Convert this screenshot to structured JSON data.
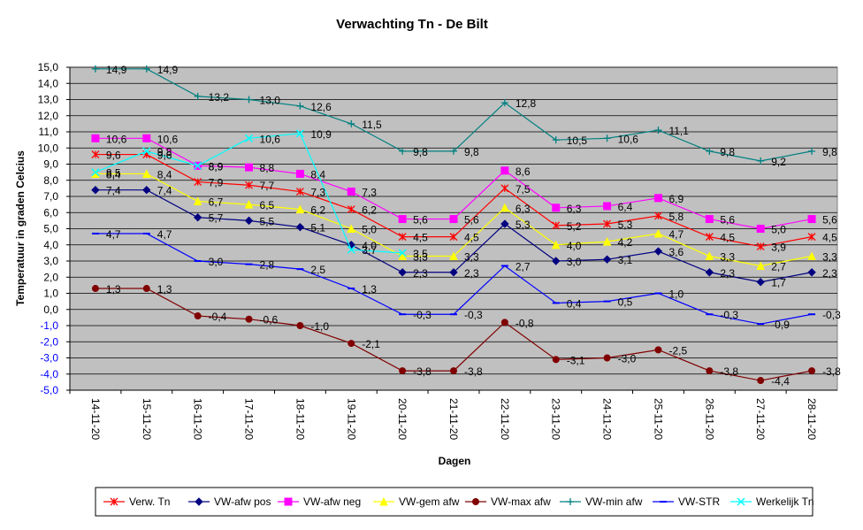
{
  "chart_data": {
    "type": "line",
    "title": "Verwachting Tn - De Bilt",
    "xlabel": "Dagen",
    "ylabel": "Temperatuur in graden Celcius",
    "categories": [
      "14-11-20",
      "15-11-20",
      "16-11-20",
      "17-11-20",
      "18-11-20",
      "19-11-20",
      "20-11-20",
      "21-11-20",
      "22-11-20",
      "23-11-20",
      "24-11-20",
      "25-11-20",
      "26-11-20",
      "27-11-20",
      "28-11-20"
    ],
    "ylim": [
      -5,
      15
    ],
    "yticks": [
      "15,0",
      "14,0",
      "13,0",
      "12,0",
      "11,0",
      "10,0",
      "9,0",
      "8,0",
      "7,0",
      "6,0",
      "5,0",
      "4,0",
      "3,0",
      "2,0",
      "1,0",
      "0,0",
      "-1,0",
      "-2,0",
      "-3,0",
      "-4,0",
      "-5,0"
    ],
    "grid": true,
    "legend_position": "bottom",
    "series": [
      {
        "name": "Verw. Tn",
        "color": "#FF0000",
        "marker": "star",
        "values": [
          9.6,
          9.6,
          7.9,
          7.7,
          7.3,
          6.2,
          4.5,
          4.5,
          7.5,
          5.2,
          5.3,
          5.8,
          4.5,
          3.9,
          4.5
        ],
        "labels": [
          "9,6",
          "9,6",
          "7,9",
          "7,7",
          "7,3",
          "6,2",
          "4,5",
          "4,5",
          "7,5",
          "5,2",
          "5,3",
          "5,8",
          "4,5",
          "3,9",
          "4,5"
        ]
      },
      {
        "name": "VW-afw pos",
        "color": "#000080",
        "marker": "diamond",
        "values": [
          7.4,
          7.4,
          5.7,
          5.5,
          5.1,
          4.0,
          2.3,
          2.3,
          5.3,
          3.0,
          3.1,
          3.6,
          2.3,
          1.7,
          2.3
        ],
        "labels": [
          "7,4",
          "7,4",
          "5,7",
          "5,5",
          "5,1",
          "4,0",
          "2,3",
          "2,3",
          "5,3",
          "3,0",
          "3,1",
          "3,6",
          "2,3",
          "1,7",
          "2,3"
        ]
      },
      {
        "name": "VW-afw neg",
        "color": "#FF00FF",
        "marker": "square",
        "values": [
          10.6,
          10.6,
          8.9,
          8.8,
          8.4,
          7.3,
          5.6,
          5.6,
          8.6,
          6.3,
          6.4,
          6.9,
          5.6,
          5.0,
          5.6
        ],
        "labels": [
          "10,6",
          "10,6",
          "8,9",
          "8,8",
          "8,4",
          "7,3",
          "5,6",
          "5,6",
          "8,6",
          "6,3",
          "6,4",
          "6,9",
          "5,6",
          "5,0",
          "5,6"
        ]
      },
      {
        "name": "VW-gem afw",
        "color": "#FFFF00",
        "marker": "triangle",
        "values": [
          8.4,
          8.4,
          6.7,
          6.5,
          6.2,
          5.0,
          3.3,
          3.3,
          6.3,
          4.0,
          4.2,
          4.7,
          3.3,
          2.7,
          3.3
        ],
        "labels": [
          "8,4",
          "8,4",
          "6,7",
          "6,5",
          "6,2",
          "5,0",
          "3,3",
          "3,3",
          "6,3",
          "4,0",
          "4,2",
          "4,7",
          "3,3",
          "2,7",
          "3,3"
        ]
      },
      {
        "name": "VW-max afw",
        "color": "#800000",
        "marker": "circle",
        "values": [
          1.3,
          1.3,
          -0.4,
          -0.6,
          -1.0,
          -2.1,
          -3.8,
          -3.8,
          -0.8,
          -3.1,
          -3.0,
          -2.5,
          -3.8,
          -4.4,
          -3.8
        ],
        "labels": [
          "1,3",
          "1,3",
          "-0,4",
          "-0,6",
          "-1,0",
          "-2,1",
          "-3,8",
          "-3,8",
          "-0,8",
          "-3,1",
          "-3,0",
          "-2,5",
          "-3,8",
          "-4,4",
          "-3,8"
        ]
      },
      {
        "name": "VW-min afw",
        "color": "#008080",
        "marker": "plus",
        "values": [
          14.9,
          14.9,
          13.2,
          13.0,
          12.6,
          11.5,
          9.8,
          9.8,
          12.8,
          10.5,
          10.6,
          11.1,
          9.8,
          9.2,
          9.8
        ],
        "labels": [
          "14,9",
          "14,9",
          "13,2",
          "13,0",
          "12,6",
          "11,5",
          "9,8",
          "9,8",
          "12,8",
          "10,5",
          "10,6",
          "11,1",
          "9,8",
          "9,2",
          "9,8"
        ]
      },
      {
        "name": "VW-STR",
        "color": "#0000FF",
        "marker": "dash",
        "values": [
          4.7,
          4.7,
          3.0,
          2.8,
          2.5,
          1.3,
          -0.3,
          -0.3,
          2.7,
          0.4,
          0.5,
          1.0,
          -0.3,
          -0.9,
          -0.3
        ],
        "labels": [
          "4,7",
          "4,7",
          "3,0",
          "2,8",
          "2,5",
          "1,3",
          "-0,3",
          "-0,3",
          "2,7",
          "0,4",
          "0,5",
          "1,0",
          "-0,3",
          "-0,9",
          "-0,3"
        ]
      },
      {
        "name": "Werkelijk Tn",
        "color": "#00FFFF",
        "marker": "x",
        "values": [
          8.5,
          9.8,
          8.9,
          10.6,
          10.9,
          3.7,
          3.5,
          null,
          null,
          null,
          null,
          null,
          null,
          null,
          null
        ],
        "labels": [
          "8,5",
          "9,8",
          "8,9",
          "10,6",
          "10,9",
          "3,7",
          "3,5"
        ]
      }
    ]
  }
}
